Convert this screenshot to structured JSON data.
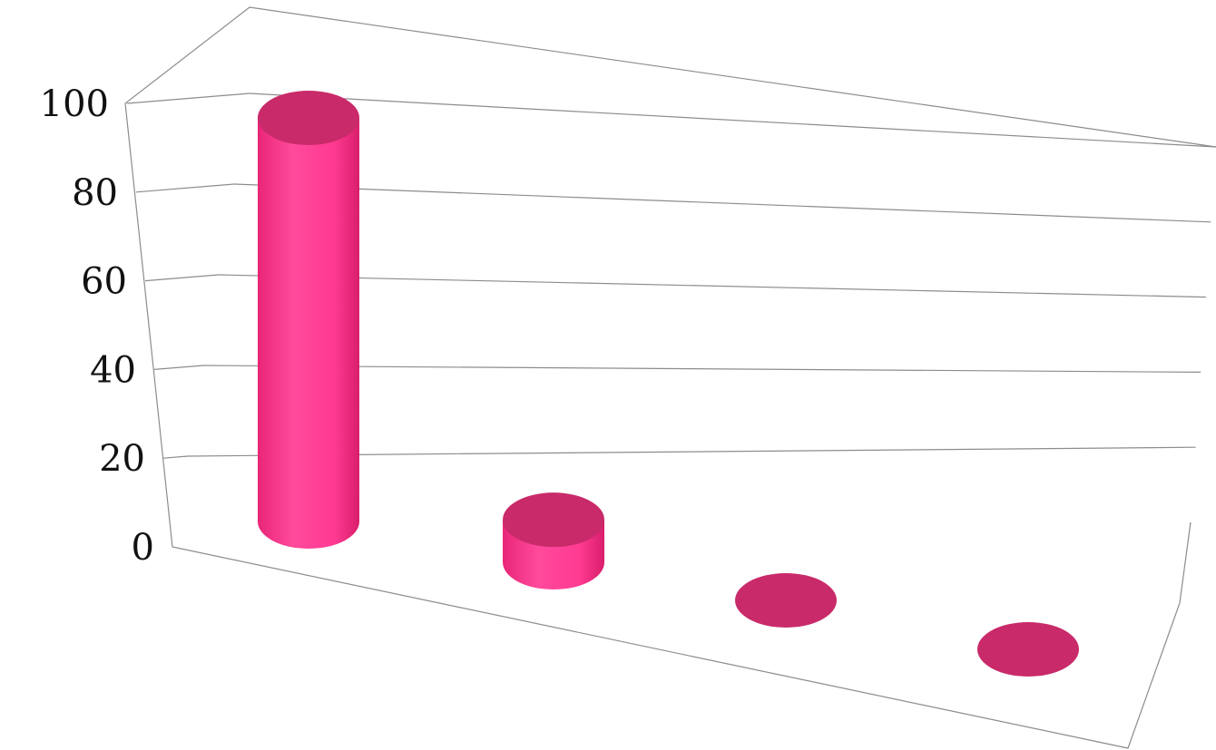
{
  "chart_data": {
    "type": "bar",
    "style": "3d-cylinder",
    "title": "",
    "xlabel": "",
    "ylabel": "",
    "categories": [
      "",
      "",
      "",
      ""
    ],
    "values": [
      95,
      10,
      0,
      0
    ],
    "ylim": [
      0,
      100
    ],
    "yticks": [
      "0",
      "20",
      "40",
      "60",
      "80",
      "100"
    ],
    "grid": true,
    "colors": {
      "bar_side": "#ff3d95",
      "bar_side_dark": "#d8226f",
      "bar_top": "#c92a6a",
      "grid": "#8c8c8c"
    }
  }
}
